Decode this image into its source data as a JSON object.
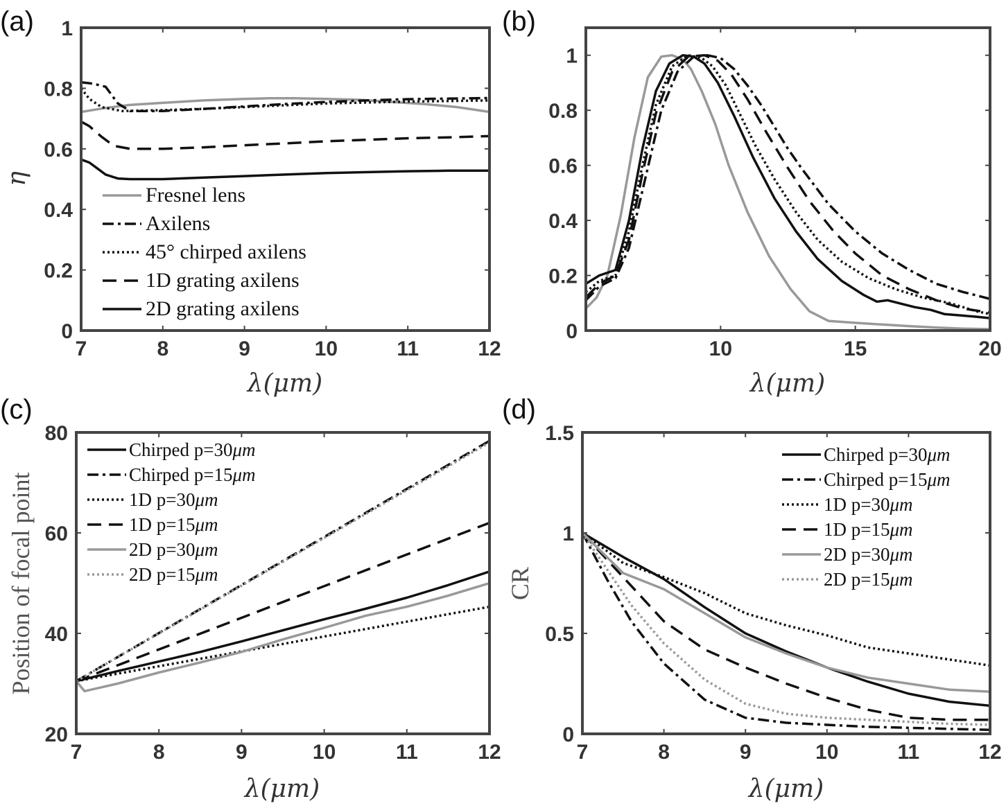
{
  "chart_data": [
    {
      "type": "line",
      "panel": "(a)",
      "xlabel": "λ(μm)",
      "ylabel": "η",
      "xlim": [
        7,
        12
      ],
      "ylim": [
        0,
        1
      ],
      "xticks": [
        "7",
        "8",
        "9",
        "10",
        "11",
        "12"
      ],
      "yticks": [
        "0",
        "0.2",
        "0.4",
        "0.6",
        "0.8",
        "1"
      ],
      "legend_position": "bottom-left",
      "series": [
        {
          "name": "Fresnel lens",
          "color": "#999999",
          "dash": "solid",
          "x": [
            7,
            7.3,
            7.6,
            8,
            8.5,
            9,
            9.3,
            9.6,
            10,
            10.4,
            10.8,
            11.2,
            11.6,
            12
          ],
          "y": [
            0.722,
            0.735,
            0.745,
            0.752,
            0.76,
            0.765,
            0.767,
            0.767,
            0.765,
            0.762,
            0.755,
            0.748,
            0.738,
            0.722
          ]
        },
        {
          "name": "Axilens",
          "color": "#111111",
          "dash": "dashdot",
          "x": [
            7,
            7.15,
            7.3,
            7.45,
            7.6,
            8,
            8.5,
            9,
            9.5,
            10,
            10.5,
            11,
            11.5,
            12
          ],
          "y": [
            0.82,
            0.815,
            0.805,
            0.75,
            0.725,
            0.725,
            0.732,
            0.74,
            0.748,
            0.755,
            0.76,
            0.764,
            0.766,
            0.768
          ]
        },
        {
          "name": "45° chirped axilens",
          "color": "#111111",
          "dash": "dotted",
          "x": [
            7,
            7.1,
            7.25,
            7.5,
            8,
            8.5,
            9,
            9.5,
            10,
            10.5,
            11,
            11.5,
            12
          ],
          "y": [
            0.8,
            0.765,
            0.738,
            0.725,
            0.728,
            0.732,
            0.738,
            0.744,
            0.75,
            0.753,
            0.756,
            0.758,
            0.76
          ]
        },
        {
          "name": "1D grating axilens",
          "color": "#111111",
          "dash": "dashed",
          "x": [
            7,
            7.1,
            7.25,
            7.4,
            7.6,
            8,
            8.5,
            9,
            9.5,
            10,
            10.5,
            11,
            11.5,
            12
          ],
          "y": [
            0.69,
            0.675,
            0.64,
            0.61,
            0.6,
            0.6,
            0.605,
            0.612,
            0.618,
            0.625,
            0.63,
            0.635,
            0.638,
            0.642
          ]
        },
        {
          "name": "2D grating axilens",
          "color": "#111111",
          "dash": "solid",
          "x": [
            7,
            7.1,
            7.2,
            7.3,
            7.45,
            7.6,
            8,
            8.5,
            9,
            9.5,
            10,
            10.5,
            11,
            11.5,
            12
          ],
          "y": [
            0.565,
            0.555,
            0.535,
            0.515,
            0.502,
            0.5,
            0.5,
            0.505,
            0.51,
            0.515,
            0.52,
            0.523,
            0.526,
            0.528,
            0.528
          ]
        }
      ]
    },
    {
      "type": "line",
      "panel": "(b)",
      "xlabel": "λ(μm)",
      "ylabel": "",
      "xlim": [
        5,
        20
      ],
      "ylim": [
        0,
        1.1
      ],
      "xticks": [
        "10",
        "15",
        "20"
      ],
      "yticks": [
        "0",
        "0.2",
        "0.4",
        "0.6",
        "0.8",
        "1"
      ],
      "series": [
        {
          "name": "Fresnel lens",
          "color": "#999999",
          "dash": "solid",
          "x": [
            5,
            5.4,
            5.8,
            6.3,
            6.8,
            7.3,
            7.8,
            8.2,
            8.6,
            8.9,
            9.3,
            9.8,
            10.3,
            11,
            11.8,
            12.6,
            13.3,
            14,
            15,
            16,
            17,
            18,
            19,
            20
          ],
          "y": [
            0.08,
            0.12,
            0.2,
            0.42,
            0.7,
            0.92,
            0.995,
            1.0,
            0.985,
            0.95,
            0.87,
            0.75,
            0.6,
            0.43,
            0.27,
            0.15,
            0.07,
            0.035,
            0.028,
            0.022,
            0.016,
            0.011,
            0.007,
            0.005
          ]
        },
        {
          "name": "Axilens",
          "color": "#111111",
          "dash": "dashdot",
          "x": [
            5,
            5.5,
            6.1,
            6.6,
            7.2,
            7.8,
            8.4,
            9,
            9.5,
            10,
            10.5,
            11,
            11.5,
            12,
            12.5,
            13,
            14,
            15,
            16,
            17,
            18,
            19,
            20
          ],
          "y": [
            0.11,
            0.16,
            0.19,
            0.3,
            0.55,
            0.8,
            0.94,
            0.995,
            1.0,
            0.99,
            0.95,
            0.89,
            0.82,
            0.74,
            0.66,
            0.59,
            0.46,
            0.36,
            0.28,
            0.22,
            0.17,
            0.14,
            0.115
          ]
        },
        {
          "name": "45° chirped axilens",
          "color": "#111111",
          "dash": "dotted",
          "x": [
            5,
            5.5,
            6.1,
            6.6,
            7.1,
            7.6,
            8.2,
            8.8,
            9.3,
            9.7,
            10.2,
            10.7,
            11.3,
            12,
            12.8,
            13.6,
            14.5,
            15.5,
            16.5,
            17.5,
            18.5,
            19.5,
            20
          ],
          "y": [
            0.14,
            0.18,
            0.2,
            0.36,
            0.6,
            0.82,
            0.96,
            1.0,
            0.99,
            0.96,
            0.89,
            0.79,
            0.67,
            0.55,
            0.43,
            0.33,
            0.25,
            0.19,
            0.15,
            0.12,
            0.1,
            0.07,
            0.06
          ]
        },
        {
          "name": "1D grating axilens",
          "color": "#111111",
          "dash": "dashed",
          "x": [
            5,
            5.5,
            6.1,
            6.6,
            7.1,
            7.6,
            8.2,
            8.8,
            9.4,
            9.9,
            10.4,
            11,
            11.7,
            12.5,
            13.3,
            14.2,
            15,
            16,
            17,
            18,
            19,
            20
          ],
          "y": [
            0.12,
            0.17,
            0.2,
            0.33,
            0.57,
            0.79,
            0.94,
            0.995,
            1.0,
            0.98,
            0.93,
            0.84,
            0.72,
            0.59,
            0.47,
            0.36,
            0.28,
            0.2,
            0.15,
            0.11,
            0.08,
            0.065
          ]
        },
        {
          "name": "2D grating axilens",
          "color": "#111111",
          "dash": "solid",
          "x": [
            5,
            5.5,
            6.1,
            6.6,
            7.1,
            7.6,
            8.1,
            8.6,
            9,
            9.4,
            9.9,
            10.5,
            11.2,
            12,
            12.8,
            13.6,
            14.5,
            15.3,
            15.8,
            16.2,
            16.6,
            17.2,
            17.8,
            18.3,
            18.9,
            19.5,
            20
          ],
          "y": [
            0.17,
            0.2,
            0.22,
            0.4,
            0.66,
            0.87,
            0.97,
            1.0,
            0.995,
            0.97,
            0.9,
            0.78,
            0.63,
            0.48,
            0.36,
            0.26,
            0.18,
            0.13,
            0.105,
            0.11,
            0.1,
            0.085,
            0.075,
            0.06,
            0.055,
            0.05,
            0.045
          ]
        }
      ]
    },
    {
      "type": "line",
      "panel": "(c)",
      "xlabel": "λ(μm)",
      "ylabel": "Position of focal point",
      "xlim": [
        7,
        12
      ],
      "ylim": [
        20,
        80
      ],
      "xticks": [
        "7",
        "8",
        "9",
        "10",
        "11",
        "12"
      ],
      "yticks": [
        "20",
        "40",
        "60",
        "80"
      ],
      "legend_position": "top-left",
      "series": [
        {
          "name": "Chirped p=30μm",
          "label_main": "Chirped p=30",
          "unit": "μm",
          "color": "#111111",
          "dash": "solid",
          "x": [
            7,
            7.5,
            8,
            8.5,
            9,
            9.5,
            10,
            10.5,
            11,
            11.5,
            12
          ],
          "y": [
            30.5,
            32.5,
            34.4,
            36.3,
            38.4,
            40.6,
            42.8,
            44.9,
            47.1,
            49.6,
            52.3
          ]
        },
        {
          "name": "Chirped p=15μm",
          "label_main": "Chirped p=15",
          "unit": "μm",
          "color": "#111111",
          "dash": "dashdot",
          "x": [
            7,
            12
          ],
          "y": [
            30.5,
            78.3
          ]
        },
        {
          "name": "1D p=30μm",
          "label_main": "1D p=30",
          "unit": "μm",
          "color": "#111111",
          "dash": "dotted",
          "x": [
            7,
            12
          ],
          "y": [
            30.5,
            45.3
          ]
        },
        {
          "name": "1D p=15μm",
          "label_main": "1D p=15",
          "unit": "μm",
          "color": "#111111",
          "dash": "dashed",
          "x": [
            7,
            12
          ],
          "y": [
            30.5,
            62.0
          ]
        },
        {
          "name": "2D p=30μm",
          "label_main": "2D p=30",
          "unit": "μm",
          "color": "#999999",
          "dash": "solid",
          "x": [
            7,
            7.1,
            7.5,
            8,
            8.5,
            9,
            9.5,
            10,
            10.5,
            11,
            11.5,
            12
          ],
          "y": [
            30.5,
            28.5,
            30.0,
            32.2,
            34.2,
            36.3,
            38.8,
            41.1,
            43.5,
            45.3,
            47.5,
            50.0
          ]
        },
        {
          "name": "2D p=15μm",
          "label_main": "2D p=15",
          "unit": "μm",
          "color": "#999999",
          "dash": "dotted",
          "x": [
            7,
            12
          ],
          "y": [
            30.5,
            78.0
          ]
        }
      ]
    },
    {
      "type": "line",
      "panel": "(d)",
      "xlabel": "λ(μm)",
      "ylabel": "CR",
      "xlim": [
        7,
        12
      ],
      "ylim": [
        0,
        1.5
      ],
      "xticks": [
        "7",
        "8",
        "9",
        "10",
        "11",
        "12"
      ],
      "yticks": [
        "0",
        "0.5",
        "1",
        "1.5"
      ],
      "legend_position": "top-right",
      "series": [
        {
          "name": "Chirped p=30μm",
          "label_main": "Chirped p=30",
          "unit": "μm",
          "color": "#111111",
          "dash": "solid",
          "x": [
            7,
            7.5,
            8,
            8.5,
            9,
            9.5,
            10,
            10.5,
            11,
            11.5,
            12
          ],
          "y": [
            1.0,
            0.88,
            0.77,
            0.63,
            0.5,
            0.41,
            0.33,
            0.26,
            0.2,
            0.16,
            0.14
          ]
        },
        {
          "name": "Chirped p=15μm",
          "label_main": "Chirped p=15",
          "unit": "μm",
          "color": "#111111",
          "dash": "dashdot",
          "x": [
            7,
            7.3,
            7.6,
            8,
            8.5,
            9,
            9.5,
            10,
            10.5,
            11,
            11.5,
            12
          ],
          "y": [
            1.0,
            0.77,
            0.56,
            0.35,
            0.17,
            0.08,
            0.055,
            0.045,
            0.035,
            0.03,
            0.025,
            0.02
          ]
        },
        {
          "name": "1D p=30μm",
          "label_main": "1D p=30",
          "unit": "μm",
          "color": "#111111",
          "dash": "dotted",
          "x": [
            7,
            7.5,
            8,
            8.5,
            9,
            9.5,
            10,
            10.5,
            11,
            11.5,
            12
          ],
          "y": [
            1.0,
            0.85,
            0.78,
            0.7,
            0.6,
            0.54,
            0.49,
            0.43,
            0.4,
            0.37,
            0.34
          ]
        },
        {
          "name": "1D p=15μm",
          "label_main": "1D p=15",
          "unit": "μm",
          "color": "#111111",
          "dash": "dashed",
          "x": [
            7,
            7.5,
            8,
            8.5,
            9,
            9.5,
            10,
            10.5,
            11,
            11.5,
            12
          ],
          "y": [
            1.0,
            0.78,
            0.56,
            0.42,
            0.33,
            0.25,
            0.18,
            0.12,
            0.08,
            0.07,
            0.07
          ]
        },
        {
          "name": "2D p=30μm",
          "label_main": "2D p=30",
          "unit": "μm",
          "color": "#999999",
          "dash": "solid",
          "x": [
            7,
            7.5,
            8,
            8.5,
            9,
            9.5,
            10,
            10.5,
            11,
            11.5,
            12
          ],
          "y": [
            1.0,
            0.8,
            0.72,
            0.6,
            0.48,
            0.4,
            0.33,
            0.28,
            0.25,
            0.22,
            0.21
          ]
        },
        {
          "name": "2D p=15μm",
          "label_main": "2D p=15",
          "unit": "μm",
          "color": "#999999",
          "dash": "dotted",
          "x": [
            7,
            7.3,
            7.6,
            8,
            8.5,
            9,
            9.5,
            10,
            10.5,
            11,
            11.5,
            12
          ],
          "y": [
            1.0,
            0.82,
            0.64,
            0.45,
            0.27,
            0.15,
            0.1,
            0.08,
            0.07,
            0.06,
            0.05,
            0.045
          ]
        }
      ]
    }
  ]
}
